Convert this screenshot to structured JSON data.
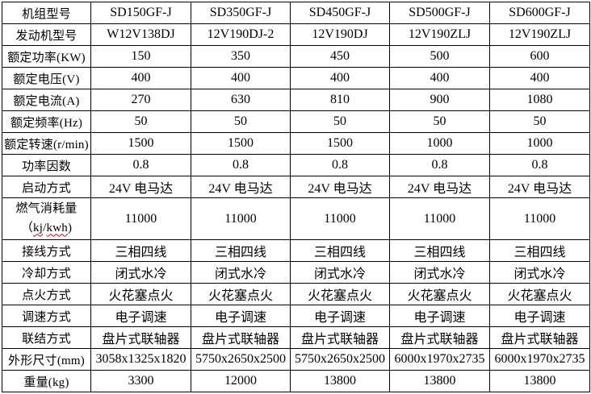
{
  "colors": {
    "border": "#000000",
    "text": "#000000",
    "background": "#ffffff",
    "spellcheck_underline": "#dd0000"
  },
  "table": {
    "title": "generator-set-specification-table",
    "rows": [
      {
        "label": "机组型号",
        "values": [
          "SD150GF-J",
          "SD350GF-J",
          "SD450GF-J",
          "SD500GF-J",
          "SD600GF-J"
        ]
      },
      {
        "label": "发动机型号",
        "values": [
          "W12V138DJ",
          "12V190DJ-2",
          "12V190DJ",
          "12V190ZLJ",
          "12V190ZLJ"
        ]
      },
      {
        "label": "额定功率(KW)",
        "values": [
          "150",
          "350",
          "450",
          "500",
          "600"
        ]
      },
      {
        "label": "额定电压(V)",
        "values": [
          "400",
          "400",
          "400",
          "400",
          "400"
        ]
      },
      {
        "label": "额定电流(A)",
        "values": [
          "270",
          "630",
          "810",
          "900",
          "1080"
        ]
      },
      {
        "label": "额定频率(Hz)",
        "values": [
          "50",
          "50",
          "50",
          "50",
          "50"
        ]
      },
      {
        "label": "额定转速(r/min)",
        "values": [
          "1500",
          "1500",
          "1500",
          "1000",
          "1000"
        ]
      },
      {
        "label": "功率因数",
        "values": [
          "0.8",
          "0.8",
          "0.8",
          "0.8",
          "0.8"
        ]
      },
      {
        "label": "启动方式",
        "values": [
          "24V 电马达",
          "24V 电马达",
          "24V 电马达",
          "24V 电马达",
          "24V 电马达"
        ]
      },
      {
        "label": "燃气消耗量",
        "label_line2": {
          "open": "（",
          "word1": "kj",
          "sep": "/",
          "word2": "kwh",
          "close": ")"
        },
        "tall": true,
        "values": [
          "11000",
          "11000",
          "11000",
          "11000",
          "11000"
        ]
      },
      {
        "label": "接线方式",
        "values": [
          "三相四线",
          "三相四线",
          "三相四线",
          "三相四线",
          "三相四线"
        ]
      },
      {
        "label": "冷却方式",
        "values": [
          "闭式水冷",
          "闭式水冷",
          "闭式水冷",
          "闭式水冷",
          "闭式水冷"
        ]
      },
      {
        "label": "点火方式",
        "values": [
          "火花塞点火",
          "火花塞点火",
          "火花塞点火",
          "火花塞点火",
          "火花塞点火"
        ]
      },
      {
        "label": "调速方式",
        "values": [
          "电子调速",
          "电子调速",
          "电子调速",
          "电子调速",
          "电子调速"
        ]
      },
      {
        "label": "联结方式",
        "values": [
          "盘片式联轴器",
          "盘片式联轴器",
          "盘片式联轴器",
          "盘片式联轴器",
          "盘片式联轴器"
        ]
      },
      {
        "label": "外形尺寸(mm)",
        "values": [
          "3058x1325x1820",
          "5750x2650x2500",
          "5750x2650x2500",
          "6000x1970x2735",
          "6000x1970x2735"
        ]
      },
      {
        "label": "重量(kg)",
        "values": [
          "3300",
          "12000",
          "13800",
          "13800",
          "13800"
        ]
      }
    ]
  }
}
